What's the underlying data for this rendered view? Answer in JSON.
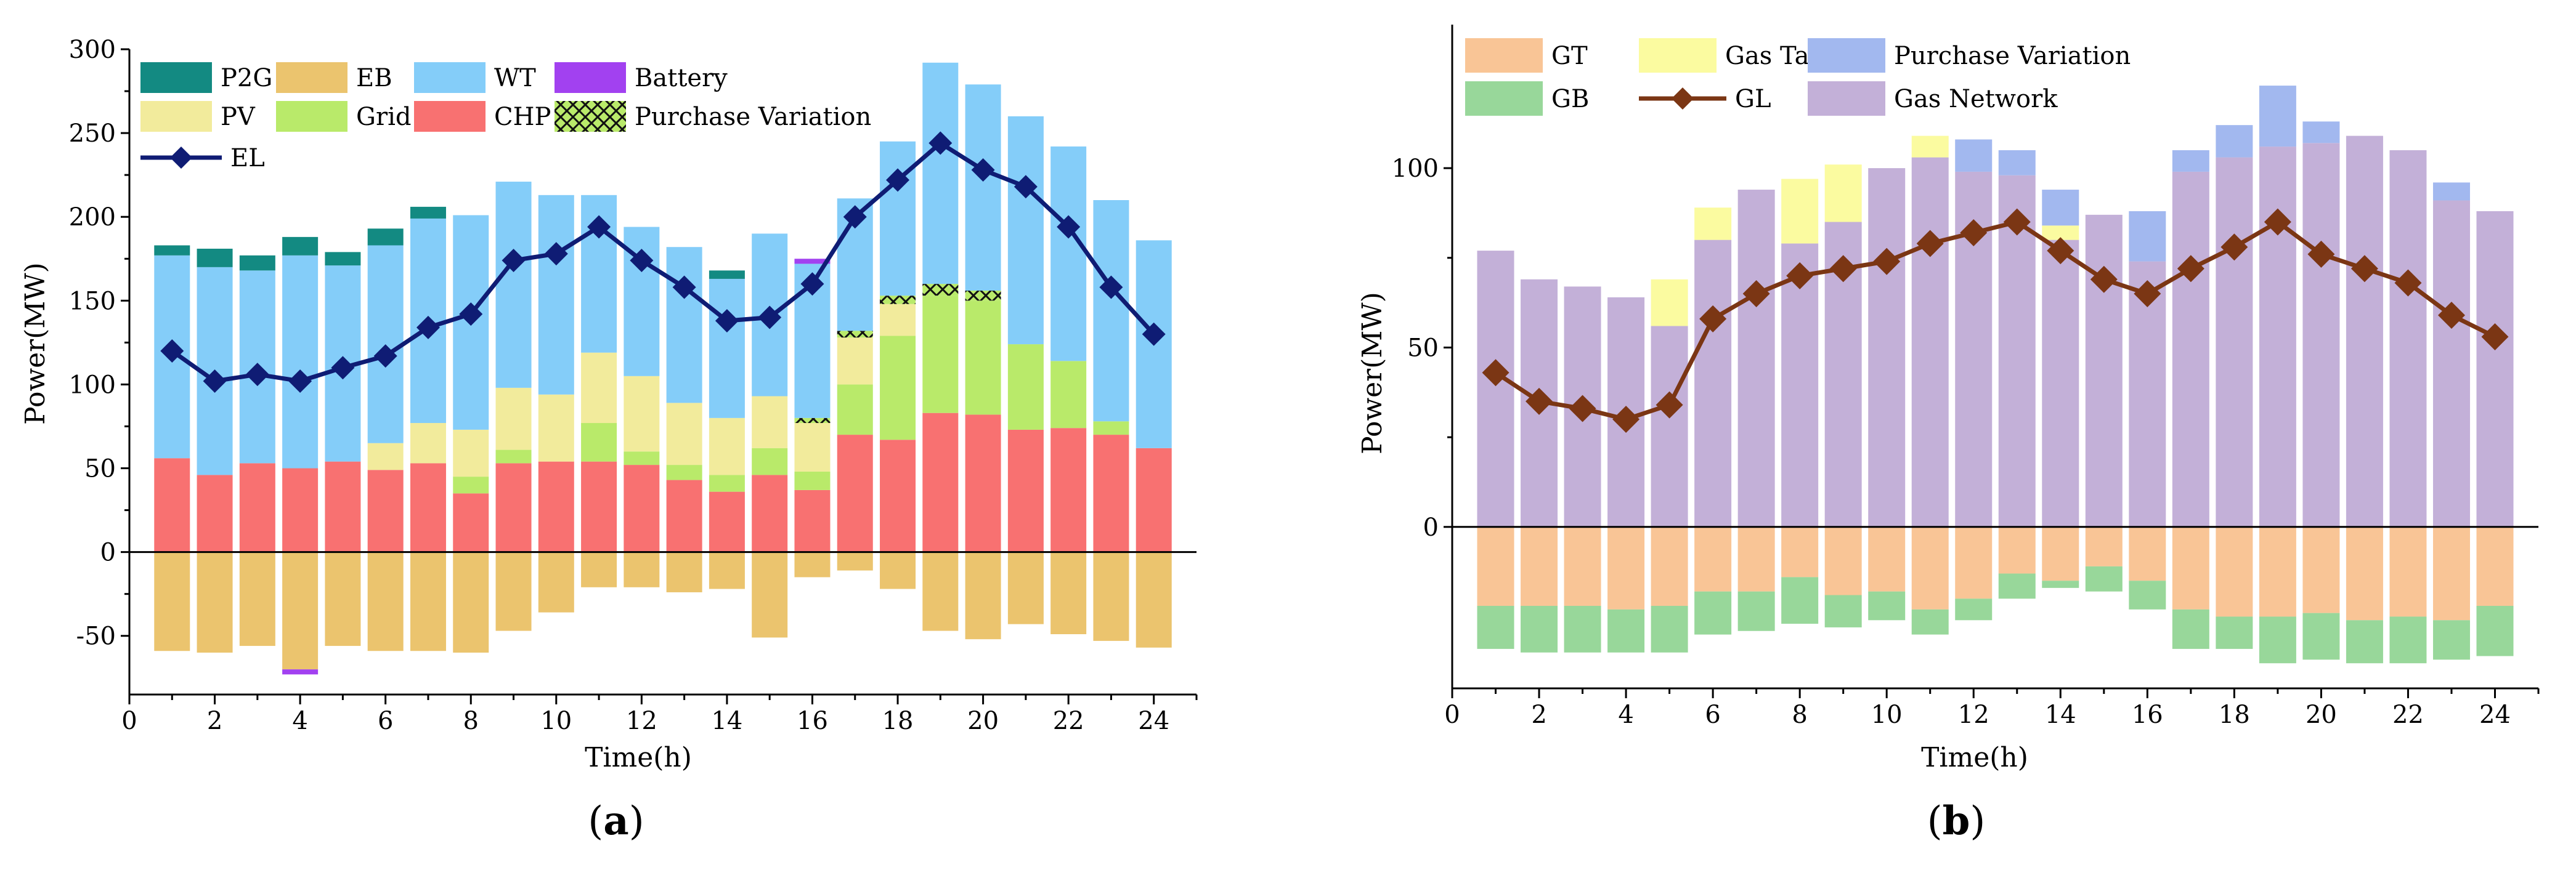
{
  "figure": {
    "panels": [
      {
        "label_left": "(",
        "label_letter": "a",
        "label_right": ")"
      },
      {
        "label_left": "(",
        "label_letter": "b",
        "label_right": ")"
      }
    ]
  },
  "chart_data": [
    {
      "type": "bar",
      "subtype": "stacked bar with line overlay",
      "panel": "a",
      "xlabel": "Time(h)",
      "ylabel": "Power(MW)",
      "xlim": [
        0,
        25
      ],
      "ylim": [
        -85,
        300
      ],
      "x_ticks": [
        0,
        2,
        4,
        6,
        8,
        10,
        12,
        14,
        16,
        18,
        20,
        22,
        24
      ],
      "y_ticks": [
        -50,
        0,
        50,
        100,
        150,
        200,
        250,
        300
      ],
      "colors": {
        "CHP": "#f87171",
        "Grid": "#b9ea6a",
        "PV": "#f2eb9c",
        "Purchase Variation": "#b9ea6a",
        "WT": "#84cdf9",
        "P2G": "#138a82",
        "Battery": "#a241f0",
        "EB": "#ebc46e",
        "EL": "#0f1c74"
      },
      "legend": [
        {
          "name": "P2G",
          "kind": "box"
        },
        {
          "name": "EB",
          "kind": "box"
        },
        {
          "name": "WT",
          "kind": "box"
        },
        {
          "name": "Battery",
          "kind": "box"
        },
        {
          "name": "PV",
          "kind": "box"
        },
        {
          "name": "Grid",
          "kind": "box"
        },
        {
          "name": "CHP",
          "kind": "box"
        },
        {
          "name": "Purchase Variation",
          "kind": "hatch"
        },
        {
          "name": "EL",
          "kind": "line"
        }
      ],
      "x": [
        1,
        2,
        3,
        4,
        5,
        6,
        7,
        8,
        9,
        10,
        11,
        12,
        13,
        14,
        15,
        16,
        17,
        18,
        19,
        20,
        21,
        22,
        23,
        24
      ],
      "positive_series": [
        {
          "name": "CHP",
          "values": [
            56,
            46,
            53,
            50,
            54,
            49,
            53,
            35,
            53,
            54,
            54,
            52,
            43,
            36,
            46,
            37,
            70,
            67,
            83,
            82,
            73,
            74,
            70,
            62
          ]
        },
        {
          "name": "Grid",
          "values": [
            0,
            0,
            0,
            0,
            0,
            0,
            0,
            10,
            8,
            0,
            23,
            8,
            9,
            10,
            16,
            11,
            30,
            62,
            70,
            68,
            51,
            40,
            8,
            0
          ]
        },
        {
          "name": "PV",
          "values": [
            0,
            0,
            0,
            0,
            0,
            16,
            24,
            28,
            37,
            40,
            42,
            45,
            37,
            34,
            31,
            29,
            28,
            19,
            0,
            0,
            0,
            0,
            0,
            0
          ]
        },
        {
          "name": "Purchase Variation",
          "values": [
            0,
            0,
            0,
            0,
            0,
            0,
            0,
            0,
            0,
            0,
            0,
            0,
            0,
            0,
            0,
            3,
            4,
            5,
            7,
            6,
            0,
            0,
            0,
            0
          ]
        },
        {
          "name": "WT",
          "values": [
            121,
            124,
            115,
            127,
            117,
            118,
            122,
            128,
            123,
            119,
            94,
            89,
            93,
            83,
            97,
            92,
            79,
            92,
            132,
            123,
            136,
            128,
            132,
            124
          ]
        },
        {
          "name": "Battery",
          "values": [
            0,
            0,
            0,
            0,
            0,
            0,
            0,
            0,
            0,
            0,
            0,
            0,
            0,
            0,
            0,
            3,
            0,
            0,
            0,
            0,
            0,
            0,
            0,
            0
          ]
        },
        {
          "name": "P2G",
          "values": [
            6,
            11,
            9,
            11,
            8,
            10,
            7,
            0,
            0,
            0,
            0,
            0,
            0,
            5,
            0,
            0,
            0,
            0,
            0,
            0,
            0,
            0,
            0,
            0
          ]
        }
      ],
      "negative_series": [
        {
          "name": "EB",
          "values": [
            -59,
            -60,
            -56,
            -70,
            -56,
            -59,
            -59,
            -60,
            -47,
            -36,
            -21,
            -21,
            -24,
            -22,
            -51,
            -15,
            -11,
            -22,
            -47,
            -52,
            -43,
            -49,
            -53,
            -57
          ]
        },
        {
          "name": "Battery",
          "values": [
            0,
            0,
            0,
            -3,
            0,
            0,
            0,
            0,
            0,
            0,
            0,
            0,
            0,
            0,
            0,
            0,
            0,
            0,
            0,
            0,
            0,
            0,
            0,
            0
          ]
        }
      ],
      "line_series": {
        "name": "EL",
        "values": [
          120,
          102,
          106,
          102,
          110,
          117,
          134,
          142,
          174,
          178,
          194,
          174,
          158,
          138,
          140,
          160,
          200,
          222,
          244,
          228,
          218,
          194,
          158,
          130
        ]
      }
    },
    {
      "type": "bar",
      "subtype": "stacked bar with line overlay",
      "panel": "b",
      "xlabel": "Time(h)",
      "ylabel": "Power(MW)",
      "xlim": [
        0,
        25
      ],
      "ylim": [
        -45,
        140
      ],
      "x_ticks": [
        0,
        2,
        4,
        6,
        8,
        10,
        12,
        14,
        16,
        18,
        20,
        22,
        24
      ],
      "y_ticks": [
        0,
        50,
        100
      ],
      "colors": {
        "Gas Network": "#c3b0d8",
        "Gas Tank": "#fbfba0",
        "Purchase Variation": "#a2b8ef",
        "GT": "#f9c596",
        "GB": "#98d79a",
        "GL": "#7b3614"
      },
      "legend": [
        {
          "name": "GT",
          "kind": "box"
        },
        {
          "name": "Gas Tank",
          "kind": "box"
        },
        {
          "name": "Purchase Variation",
          "kind": "box"
        },
        {
          "name": "GB",
          "kind": "box"
        },
        {
          "name": "GL",
          "kind": "line"
        },
        {
          "name": "Gas Network",
          "kind": "box"
        }
      ],
      "x": [
        1,
        2,
        3,
        4,
        5,
        6,
        7,
        8,
        9,
        10,
        11,
        12,
        13,
        14,
        15,
        16,
        17,
        18,
        19,
        20,
        21,
        22,
        23,
        24
      ],
      "positive_series": [
        {
          "name": "Gas Network",
          "values": [
            77,
            69,
            67,
            64,
            56,
            80,
            94,
            79,
            85,
            100,
            103,
            99,
            98,
            80,
            87,
            74,
            99,
            103,
            106,
            107,
            109,
            105,
            91,
            88
          ]
        },
        {
          "name": "Gas Tank",
          "values": [
            0,
            0,
            0,
            0,
            13,
            9,
            0,
            18,
            16,
            0,
            6,
            0,
            0,
            4,
            0,
            0,
            0,
            0,
            0,
            0,
            0,
            0,
            0,
            0
          ]
        },
        {
          "name": "Purchase Variation",
          "values": [
            0,
            0,
            0,
            0,
            0,
            0,
            0,
            0,
            0,
            0,
            0,
            9,
            7,
            10,
            0,
            14,
            6,
            9,
            17,
            6,
            0,
            0,
            5,
            0
          ]
        }
      ],
      "negative_series": [
        {
          "name": "GT",
          "values": [
            -22,
            -22,
            -22,
            -23,
            -22,
            -18,
            -18,
            -14,
            -19,
            -18,
            -23,
            -20,
            -13,
            -15,
            -11,
            -15,
            -23,
            -25,
            -25,
            -24,
            -26,
            -25,
            -26,
            -22
          ]
        },
        {
          "name": "GB",
          "values": [
            -12,
            -13,
            -13,
            -12,
            -13,
            -12,
            -11,
            -13,
            -9,
            -8,
            -7,
            -6,
            -7,
            -2,
            -7,
            -8,
            -11,
            -9,
            -13,
            -13,
            -12,
            -13,
            -11,
            -14
          ]
        }
      ],
      "line_series": {
        "name": "GL",
        "values": [
          43,
          35,
          33,
          30,
          34,
          58,
          65,
          70,
          72,
          74,
          79,
          82,
          85,
          77,
          69,
          65,
          72,
          78,
          85,
          76,
          72,
          68,
          59,
          53
        ]
      }
    }
  ]
}
